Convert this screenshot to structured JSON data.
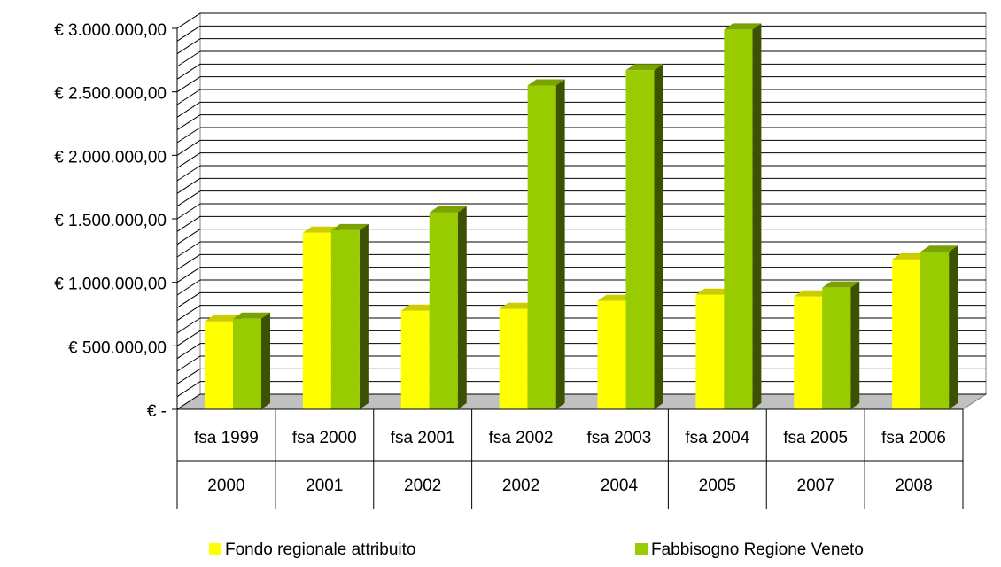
{
  "chart_data": {
    "type": "bar3d",
    "categories": [
      "fsa 1999",
      "fsa 2000",
      "fsa 2001",
      "fsa 2002",
      "fsa 2003",
      "fsa 2004",
      "fsa 2005",
      "fsa 2006"
    ],
    "subcategories": [
      "2000",
      "2001",
      "2002",
      "2002",
      "2004",
      "2005",
      "2007",
      "2008"
    ],
    "series": [
      {
        "name": "Fondo regionale attribuito",
        "color": "#ffff00",
        "values": [
          692000,
          1390000,
          776000,
          790000,
          853000,
          902000,
          888000,
          1180000
        ]
      },
      {
        "name": "Fabbisogno Regione Veneto",
        "color": "#99cc00",
        "values": [
          713000,
          1410000,
          1550000,
          2550000,
          2670000,
          2990000,
          958000,
          1240000
        ]
      }
    ],
    "ylim": [
      0,
      3000000
    ],
    "yticks": [
      {
        "value": 0,
        "label": "€ -"
      },
      {
        "value": 500000,
        "label": "€ 500.000,00"
      },
      {
        "value": 1000000,
        "label": "€ 1.000.000,00"
      },
      {
        "value": 1500000,
        "label": "€ 1.500.000,00"
      },
      {
        "value": 2000000,
        "label": "€ 2.000.000,00"
      },
      {
        "value": 2500000,
        "label": "€ 2.500.000,00"
      },
      {
        "value": 3000000,
        "label": "€ 3.000.000,00"
      }
    ],
    "grid": true,
    "legend": "bottom"
  }
}
